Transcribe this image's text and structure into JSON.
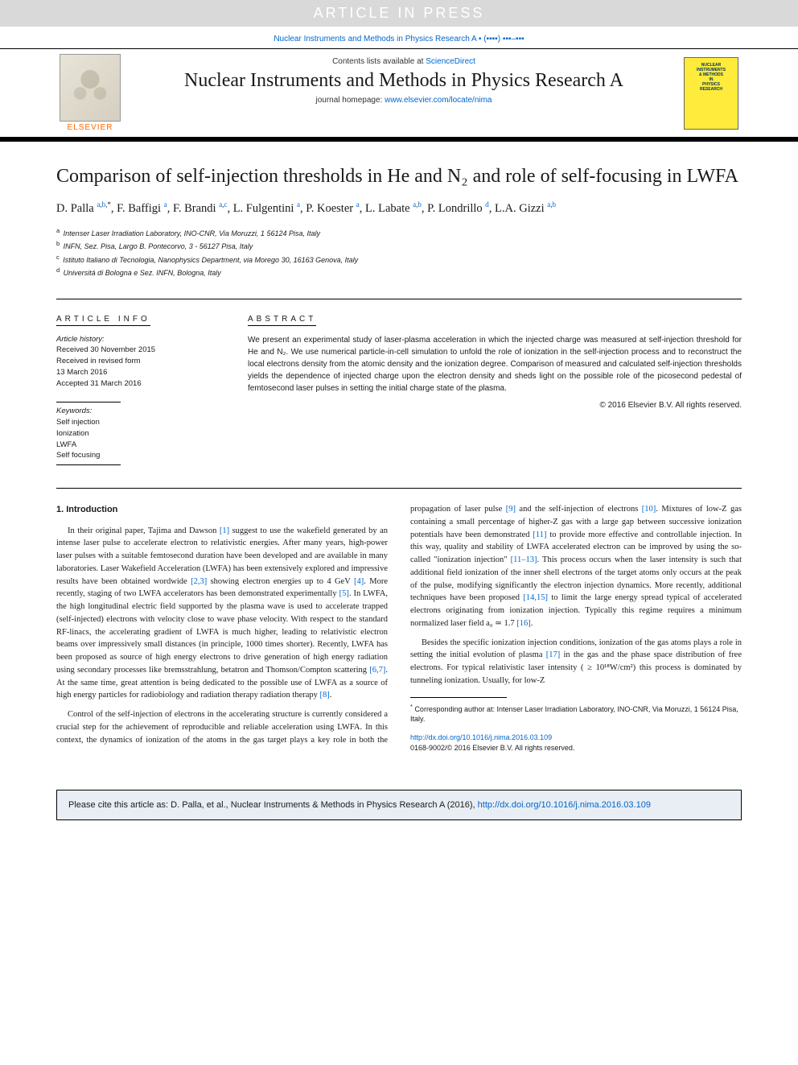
{
  "banner": {
    "text": "ARTICLE IN PRESS"
  },
  "journal_ref": {
    "text": "Nuclear Instruments and Methods in Physics Research A ▪ (▪▪▪▪) ▪▪▪–▪▪▪"
  },
  "masthead": {
    "contents_prefix": "Contents lists available at ",
    "contents_link": "ScienceDirect",
    "journal_title": "Nuclear Instruments and Methods in Physics Research A",
    "homepage_prefix": "journal homepage: ",
    "homepage_link": "www.elsevier.com/locate/nima",
    "publisher_name": "ELSEVIER",
    "cover_lines": [
      "NUCLEAR",
      "INSTRUMENTS",
      "& METHODS",
      "IN",
      "PHYSICS",
      "RESEARCH"
    ]
  },
  "article": {
    "title": "Comparison of self-injection thresholds in He and N₂ and role of self-focusing in LWFA",
    "authors_html": "D. Palla <sup><a>a</a>,<a>b</a>,*</sup>, F. Baffigi <sup><a>a</a></sup>, F. Brandi <sup><a>a</a>,<a>c</a></sup>, L. Fulgentini <sup><a>a</a></sup>, P. Koester <sup><a>a</a></sup>, L. Labate <sup><a>a</a>,<a>b</a></sup>, P. Londrillo <sup><a>d</a></sup>, L.A. Gizzi <sup><a>a</a>,<a>b</a></sup>",
    "affiliations": [
      {
        "key": "a",
        "text": "Intenser Laser Irradiation Laboratory, INO-CNR, Via Moruzzi, 1 56124 Pisa, Italy"
      },
      {
        "key": "b",
        "text": "INFN, Sez. Pisa, Largo B. Pontecorvo, 3 - 56127 Pisa, Italy"
      },
      {
        "key": "c",
        "text": "Istituto Italiano di Tecnologia, Nanophysics Department, via Morego 30, 16163 Genova, Italy"
      },
      {
        "key": "d",
        "text": "Universitá di Bologna e Sez. INFN, Bologna, Italy"
      }
    ]
  },
  "info": {
    "label": "ARTICLE INFO",
    "history_label": "Article history:",
    "history": [
      "Received 30 November 2015",
      "Received in revised form",
      "13 March 2016",
      "Accepted 31 March 2016"
    ],
    "keywords_label": "Keywords:",
    "keywords": [
      "Self injection",
      "Ionization",
      "LWFA",
      "Self focusing"
    ]
  },
  "abstract": {
    "label": "ABSTRACT",
    "text": "We present an experimental study of laser-plasma acceleration in which the injected charge was measured at self-injection threshold for He and N₂. We use numerical particle-in-cell simulation to unfold the role of ionization in the self-injection process and to reconstruct the local electrons density from the atomic density and the ionization degree. Comparison of measured and calculated self-injection thresholds yields the dependence of injected charge upon the electron density and sheds light on the possible role of the picosecond pedestal of femtosecond laser pulses in setting the initial charge state of the plasma.",
    "copyright": "© 2016 Elsevier B.V. All rights reserved."
  },
  "section1": {
    "heading": "1.  Introduction",
    "p1_pre": "In their original paper, Tajima and Dawson ",
    "r1": "[1]",
    "p1_mid1": " suggest to use the wakefield generated by an intense laser pulse to accelerate electron to relativistic energies. After many years, high-power laser pulses with a suitable femtosecond duration have been developed and are available in many laboratories. Laser Wakefield Acceleration (LWFA) has been extensively explored and impressive results have been obtained wordwide ",
    "r23": "[2,3]",
    "p1_mid2": " showing electron energies up to 4 GeV ",
    "r4": "[4]",
    "p1_mid3": ". More recently, staging of two LWFA accelerators has been demonstrated experimentally ",
    "r5": "[5]",
    "p1_mid4": ". In LWFA, the high longitudinal electric field supported by the plasma wave is used to accelerate trapped (self-injected) electrons with velocity close to wave phase velocity. With respect to the standard RF-linacs, the accelerating gradient of LWFA is much higher, leading to relativistic electron beams over impressively small distances (in principle, 1000 times shorter). Recently, LWFA has been proposed as source of high energy electrons to drive generation of high energy radiation using secondary processes like bremsstrahlung, betatron and Thomson/Compton scattering ",
    "r67": "[6,7]",
    "p1_mid5": ". At the same time, great attention is being dedicated to the possible use of LWFA as a source of high energy particles for radiobiology and radiation therapy ",
    "r8": "[8]",
    "p1_end": ".",
    "p2_pre": "Control of the self-injection of electrons in the accelerating structure is currently considered a crucial step for the achievement of reproducible and reliable acceleration using LWFA. In this context, the dynamics of ionization of the atoms in the gas target plays a key role in both the propagation of laser pulse ",
    "r9": "[9]",
    "p2_m1": " and the self-injection of electrons ",
    "r10": "[10]",
    "p2_m2": ". Mixtures of low-Z gas containing a small percentage of higher-Z gas with a large gap between successive ionization potentials have been demonstrated ",
    "r11": "[11]",
    "p2_m3": " to provide more effective and controllable injection. In this way, quality and stability of LWFA accelerated electron can be improved by using the so-called \"ionization injection\" ",
    "r1113": "[11–13]",
    "p2_m4": ". This process occurs when the laser intensity is such that additional field ionization of the inner shell electrons of the target atoms only occurs at the peak of the pulse, modifying significantly the electron injection dynamics. More recently, additional techniques have been proposed ",
    "r1415": "[14,15]",
    "p2_m5": " to limit the large energy spread typical of accelerated electrons originating from ionization injection. Typically this regime requires a minimum normalized laser field  a₀ ≃ 1.7 ",
    "r16": "[16]",
    "p2_end": ".",
    "p3_pre": "Besides the specific ionization injection conditions, ionization of the gas atoms plays a role in setting the initial evolution of plasma ",
    "r17": "[17]",
    "p3_m1": " in the gas and the phase space distribution of free electrons. For typical relativistic laser intensity ( ≥ 10¹⁸W/cm²) this process is dominated by tunneling ionization. Usually, for low-Z"
  },
  "footnote": {
    "marker": "*",
    "text": "Corresponding author at: Intenser Laser Irradiation Laboratory, INO-CNR, Via Moruzzi, 1 56124 Pisa, Italy."
  },
  "doi": {
    "url": "http://dx.doi.org/10.1016/j.nima.2016.03.109",
    "issn_line": "0168-9002/© 2016 Elsevier B.V. All rights reserved."
  },
  "citebox": {
    "prefix": "Please cite this article as: D. Palla, et al., Nuclear Instruments & Methods in Physics Research A (2016), ",
    "link": "http://dx.doi.org/10.1016/j.nima.2016.03.109"
  },
  "colors": {
    "link": "#0066cc",
    "banner_bg": "#d9d9d9",
    "cite_bg": "#e8eef4",
    "publisher_orange": "#ff6600",
    "cover_yellow": "#ffeb3b"
  }
}
